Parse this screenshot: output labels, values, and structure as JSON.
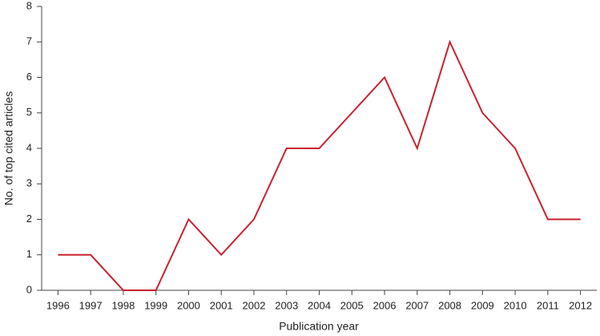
{
  "chart_data": {
    "type": "line",
    "x_label": "Publication year",
    "y_label": "No. of top cited articles",
    "categories": [
      "1996",
      "1997",
      "1998",
      "1999",
      "2000",
      "2001",
      "2002",
      "2003",
      "2004",
      "2005",
      "2006",
      "2007",
      "2008",
      "2009",
      "2010",
      "2011",
      "2012"
    ],
    "values": [
      1,
      1,
      0,
      0,
      2,
      1,
      2,
      4,
      4,
      5,
      6,
      4,
      7,
      5,
      4,
      2,
      2
    ],
    "color": "#c8202f",
    "ylim": [
      0,
      8
    ],
    "yticks": [
      0,
      1,
      2,
      3,
      4,
      5,
      6,
      7,
      8
    ]
  }
}
